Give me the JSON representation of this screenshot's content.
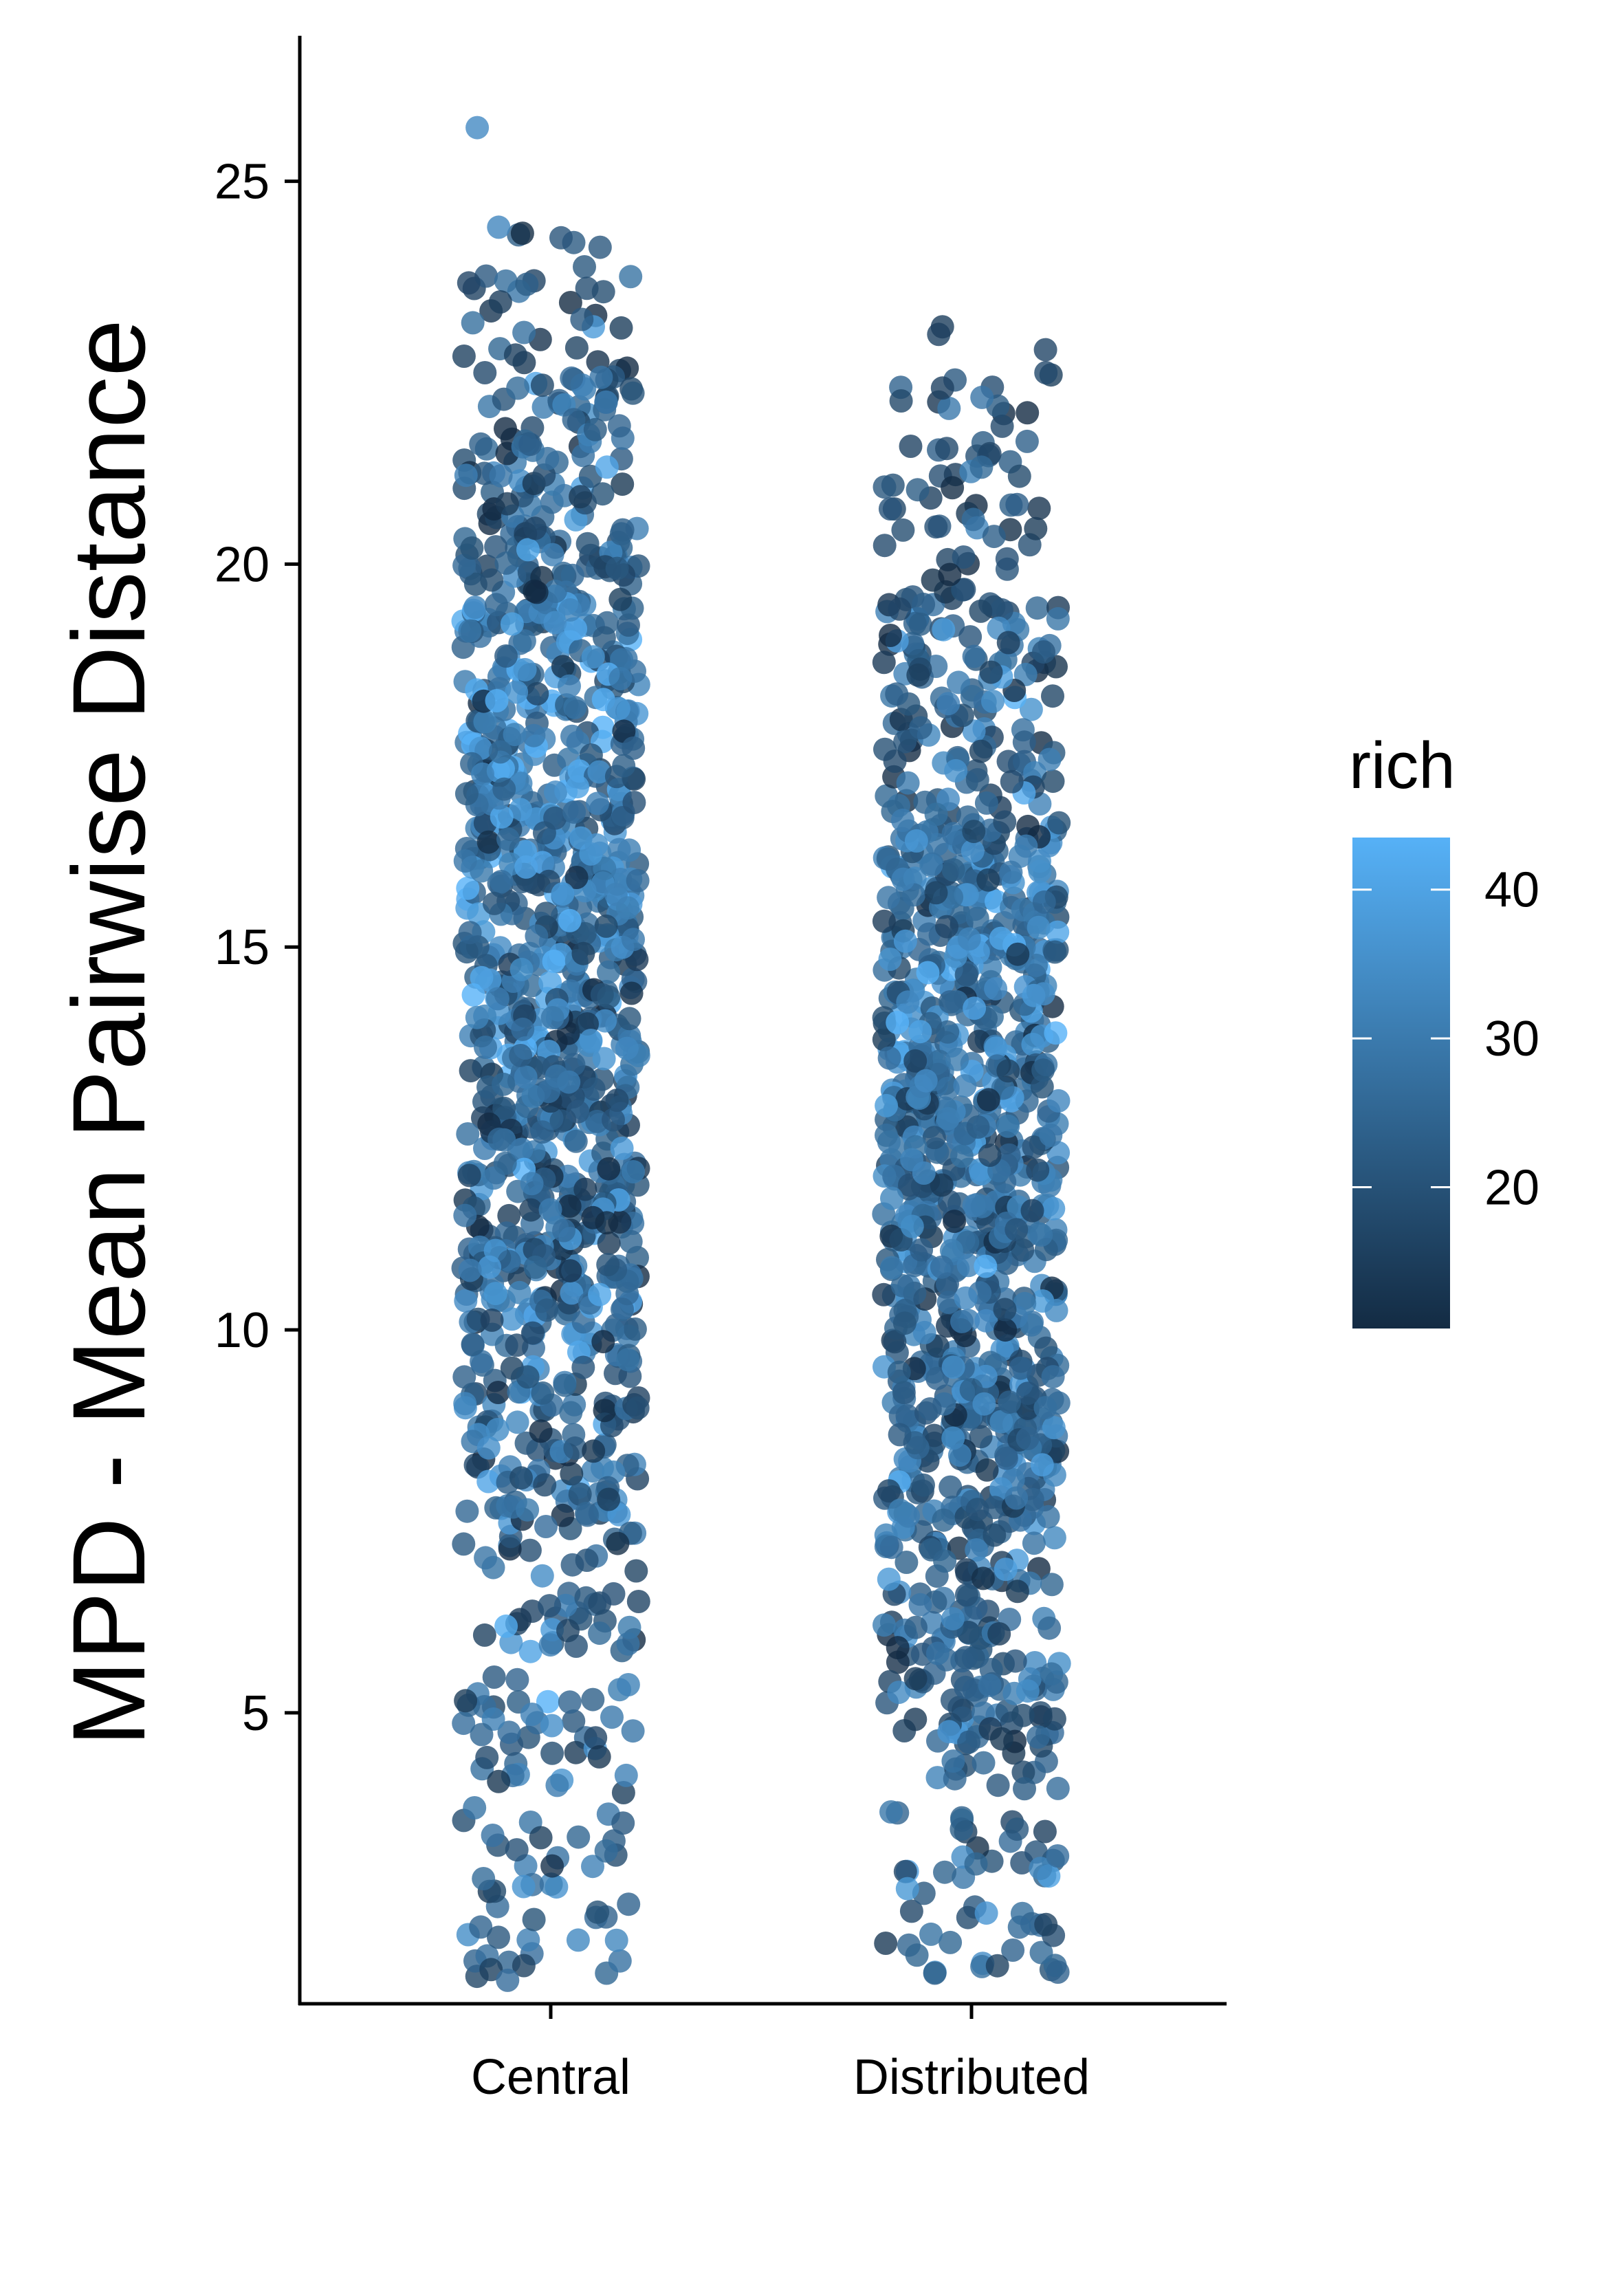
{
  "chart_data": {
    "type": "scatter",
    "subtype": "jitter strip plot",
    "title": "",
    "xlabel": "",
    "ylabel": "MPD - Mean Pairwise Distance",
    "categories": [
      "Central",
      "Distributed"
    ],
    "yticks": [
      5,
      10,
      15,
      20,
      25
    ],
    "ylim": [
      1.2,
      26.9
    ],
    "grid": false,
    "color_scale": {
      "name": "rich",
      "ticks": [
        20,
        30,
        40
      ],
      "range": [
        10.5,
        43.5
      ],
      "low_color": "#132b43",
      "high_color": "#56b1f7"
    },
    "legend": {
      "title": "rich",
      "position": "right"
    },
    "point_alpha": 0.8,
    "series": [
      {
        "category": "Central",
        "n_points": 1400,
        "y_range": [
          1.6,
          25.7
        ],
        "notable_points": [
          {
            "y": 25.7,
            "rich": 34
          },
          {
            "y": 24.4,
            "rich": 33
          },
          {
            "y": 24.2,
            "rich": 22
          },
          {
            "y": 23.7,
            "rich": 16
          },
          {
            "y": 23.6,
            "rich": 16
          },
          {
            "y": 23.1,
            "rich": 38
          },
          {
            "y": 22.5,
            "rich": 18
          },
          {
            "y": 22.1,
            "rich": 16
          },
          {
            "y": 5.8,
            "rich": 40
          },
          {
            "y": 3.4,
            "rich": 28
          },
          {
            "y": 2.5,
            "rich": 24
          },
          {
            "y": 2.3,
            "rich": 20
          },
          {
            "y": 1.6,
            "rich": 25
          }
        ],
        "bands": [
          {
            "y_from": 1.5,
            "y_to": 4.5,
            "count": 55,
            "rich_mean": 24,
            "rich_sd": 6
          },
          {
            "y_from": 4.5,
            "y_to": 7.5,
            "count": 75,
            "rich_mean": 25,
            "rich_sd": 7
          },
          {
            "y_from": 7.5,
            "y_to": 10.5,
            "count": 170,
            "rich_mean": 25,
            "rich_sd": 8
          },
          {
            "y_from": 10.5,
            "y_to": 13.5,
            "count": 250,
            "rich_mean": 24,
            "rich_sd": 8
          },
          {
            "y_from": 13.5,
            "y_to": 16.5,
            "count": 270,
            "rich_mean": 28,
            "rich_sd": 9
          },
          {
            "y_from": 16.5,
            "y_to": 19.5,
            "count": 250,
            "rich_mean": 29,
            "rich_sd": 9
          },
          {
            "y_from": 19.5,
            "y_to": 22.5,
            "count": 150,
            "rich_mean": 23,
            "rich_sd": 8
          },
          {
            "y_from": 22.5,
            "y_to": 24.5,
            "count": 30,
            "rich_mean": 20,
            "rich_sd": 6
          }
        ]
      },
      {
        "category": "Distributed",
        "n_points": 1300,
        "y_range": [
          1.6,
          23.1
        ],
        "notable_points": [
          {
            "y": 23.1,
            "rich": 15
          },
          {
            "y": 23.0,
            "rich": 16
          },
          {
            "y": 22.8,
            "rich": 17
          },
          {
            "y": 22.5,
            "rich": 18
          },
          {
            "y": 22.3,
            "rich": 16
          },
          {
            "y": 21.8,
            "rich": 18
          },
          {
            "y": 2.2,
            "rich": 26
          },
          {
            "y": 2.0,
            "rich": 25
          },
          {
            "y": 1.9,
            "rich": 24
          },
          {
            "y": 1.7,
            "rich": 25
          },
          {
            "y": 1.6,
            "rich": 23
          }
        ],
        "bands": [
          {
            "y_from": 1.5,
            "y_to": 4.5,
            "count": 60,
            "rich_mean": 25,
            "rich_sd": 6
          },
          {
            "y_from": 4.5,
            "y_to": 7.5,
            "count": 150,
            "rich_mean": 24,
            "rich_sd": 7
          },
          {
            "y_from": 7.5,
            "y_to": 10.5,
            "count": 240,
            "rich_mean": 25,
            "rich_sd": 7
          },
          {
            "y_from": 10.5,
            "y_to": 13.5,
            "count": 280,
            "rich_mean": 27,
            "rich_sd": 8
          },
          {
            "y_from": 13.5,
            "y_to": 16.5,
            "count": 270,
            "rich_mean": 28,
            "rich_sd": 8
          },
          {
            "y_from": 16.5,
            "y_to": 19.5,
            "count": 140,
            "rich_mean": 23,
            "rich_sd": 8
          },
          {
            "y_from": 19.5,
            "y_to": 22.5,
            "count": 60,
            "rich_mean": 19,
            "rich_sd": 5
          }
        ]
      }
    ]
  }
}
